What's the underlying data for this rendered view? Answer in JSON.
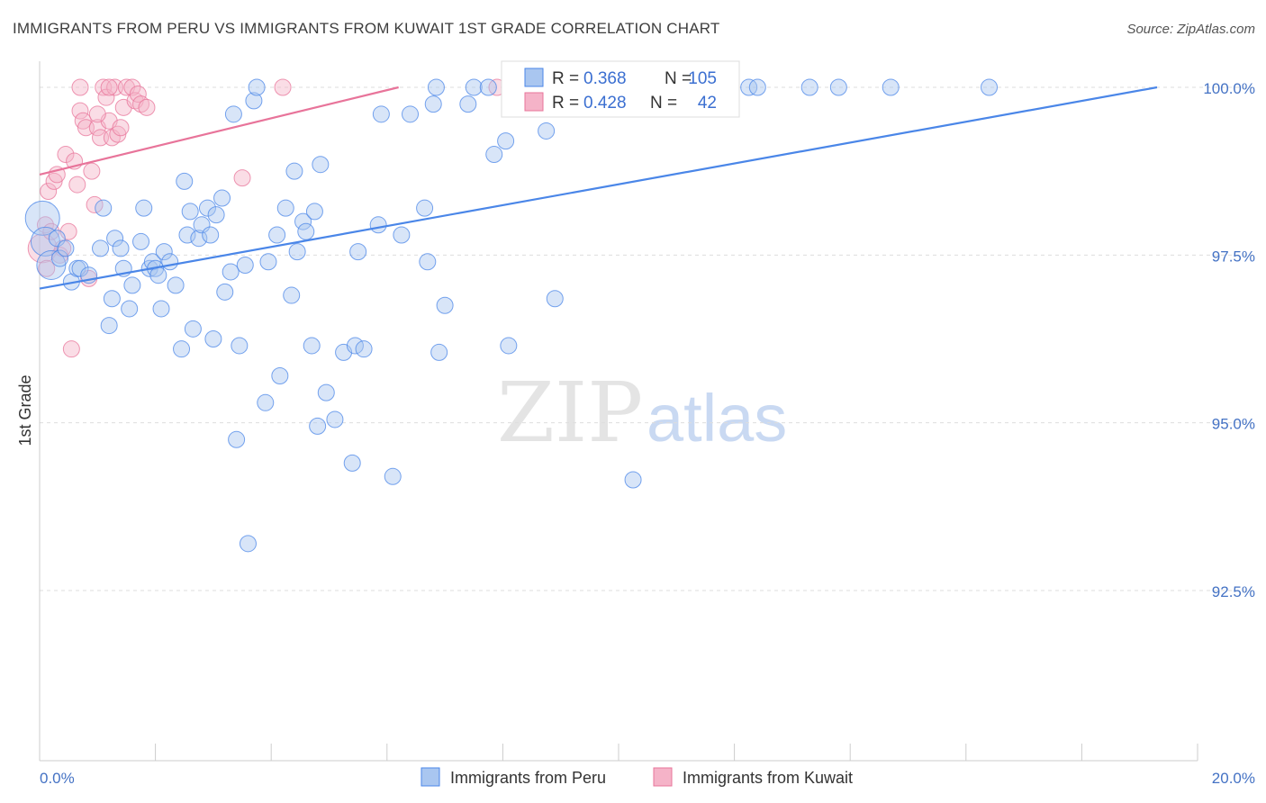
{
  "header": {
    "title": "IMMIGRANTS FROM PERU VS IMMIGRANTS FROM KUWAIT 1ST GRADE CORRELATION CHART",
    "source": "Source: ZipAtlas.com"
  },
  "watermark": {
    "zip": "ZIP",
    "atlas": "atlas"
  },
  "colors": {
    "peru": "#4a86e8",
    "peru_fill": "#a9c6f0",
    "kuwait": "#e8749a",
    "kuwait_fill": "#f5b3c8",
    "tick_text": "#4472c4",
    "grid": "#dddddd"
  },
  "stats": {
    "peru": {
      "r_label": "R = ",
      "r_value": "0.368",
      "n_label": "N = ",
      "n_value": "105"
    },
    "kuwait": {
      "r_label": "R = ",
      "r_value": "0.428",
      "n_label": "N = ",
      "n_value": "42"
    }
  },
  "chart_data": {
    "type": "scatter",
    "title": "IMMIGRANTS FROM PERU VS IMMIGRANTS FROM KUWAIT 1ST GRADE CORRELATION CHART",
    "xlabel": "",
    "ylabel": "1st Grade",
    "xlim": [
      0,
      20
    ],
    "ylim": [
      90.0,
      100.3
    ],
    "x_tick_labels": [
      "0.0%",
      "20.0%"
    ],
    "y_ticks": [
      100.0,
      97.5,
      95.0,
      92.5
    ],
    "y_tick_labels": [
      "100.0%",
      "97.5%",
      "95.0%",
      "92.5%"
    ],
    "legend": [
      "Immigrants from Peru",
      "Immigrants from Kuwait"
    ],
    "series": [
      {
        "name": "Immigrants from Peru",
        "color": "#4a86e8",
        "trend": {
          "x": [
            0,
            19.3
          ],
          "y": [
            97.0,
            100.0
          ]
        },
        "points": [
          {
            "x": 0.05,
            "y": 98.05,
            "s": 3
          },
          {
            "x": 0.1,
            "y": 97.7,
            "s": 2
          },
          {
            "x": 0.2,
            "y": 97.35,
            "s": 2
          },
          {
            "x": 0.35,
            "y": 97.45
          },
          {
            "x": 0.3,
            "y": 97.75
          },
          {
            "x": 0.45,
            "y": 97.6
          },
          {
            "x": 0.55,
            "y": 97.1
          },
          {
            "x": 0.65,
            "y": 97.3
          },
          {
            "x": 0.7,
            "y": 97.3
          },
          {
            "x": 0.85,
            "y": 97.2
          },
          {
            "x": 1.05,
            "y": 97.6
          },
          {
            "x": 1.1,
            "y": 98.2
          },
          {
            "x": 1.3,
            "y": 97.75
          },
          {
            "x": 1.4,
            "y": 97.6
          },
          {
            "x": 1.45,
            "y": 97.3
          },
          {
            "x": 1.25,
            "y": 96.85
          },
          {
            "x": 1.2,
            "y": 96.45
          },
          {
            "x": 1.6,
            "y": 97.05
          },
          {
            "x": 1.55,
            "y": 96.7
          },
          {
            "x": 1.75,
            "y": 97.7
          },
          {
            "x": 1.8,
            "y": 98.2
          },
          {
            "x": 1.9,
            "y": 97.3
          },
          {
            "x": 1.95,
            "y": 97.4
          },
          {
            "x": 2.0,
            "y": 97.3
          },
          {
            "x": 2.05,
            "y": 97.2
          },
          {
            "x": 2.1,
            "y": 96.7
          },
          {
            "x": 2.15,
            "y": 97.55
          },
          {
            "x": 2.25,
            "y": 97.4
          },
          {
            "x": 2.35,
            "y": 97.05
          },
          {
            "x": 2.45,
            "y": 96.1
          },
          {
            "x": 2.5,
            "y": 98.6
          },
          {
            "x": 2.55,
            "y": 97.8
          },
          {
            "x": 2.6,
            "y": 98.15
          },
          {
            "x": 2.65,
            "y": 96.4
          },
          {
            "x": 2.75,
            "y": 97.75
          },
          {
            "x": 2.8,
            "y": 97.95
          },
          {
            "x": 2.9,
            "y": 98.2
          },
          {
            "x": 2.95,
            "y": 97.8
          },
          {
            "x": 3.0,
            "y": 96.25
          },
          {
            "x": 3.05,
            "y": 98.1
          },
          {
            "x": 3.15,
            "y": 98.35
          },
          {
            "x": 3.2,
            "y": 96.95
          },
          {
            "x": 3.3,
            "y": 97.25
          },
          {
            "x": 3.35,
            "y": 99.6
          },
          {
            "x": 3.4,
            "y": 94.75
          },
          {
            "x": 3.45,
            "y": 96.15
          },
          {
            "x": 3.55,
            "y": 97.35
          },
          {
            "x": 3.6,
            "y": 93.2
          },
          {
            "x": 3.7,
            "y": 99.8
          },
          {
            "x": 3.75,
            "y": 100.0
          },
          {
            "x": 3.9,
            "y": 95.3
          },
          {
            "x": 3.95,
            "y": 97.4
          },
          {
            "x": 4.1,
            "y": 97.8
          },
          {
            "x": 4.15,
            "y": 95.7
          },
          {
            "x": 4.25,
            "y": 98.2
          },
          {
            "x": 4.35,
            "y": 96.9
          },
          {
            "x": 4.4,
            "y": 98.75
          },
          {
            "x": 4.45,
            "y": 97.55
          },
          {
            "x": 4.55,
            "y": 98.0
          },
          {
            "x": 4.6,
            "y": 97.85
          },
          {
            "x": 4.7,
            "y": 96.15
          },
          {
            "x": 4.75,
            "y": 98.15
          },
          {
            "x": 4.8,
            "y": 94.95
          },
          {
            "x": 4.85,
            "y": 98.85
          },
          {
            "x": 4.95,
            "y": 95.45
          },
          {
            "x": 5.1,
            "y": 95.05
          },
          {
            "x": 5.25,
            "y": 96.05
          },
          {
            "x": 5.4,
            "y": 94.4
          },
          {
            "x": 5.45,
            "y": 96.15
          },
          {
            "x": 5.5,
            "y": 97.55
          },
          {
            "x": 5.6,
            "y": 96.1
          },
          {
            "x": 5.85,
            "y": 97.95
          },
          {
            "x": 5.9,
            "y": 99.6
          },
          {
            "x": 6.1,
            "y": 94.2
          },
          {
            "x": 6.25,
            "y": 97.8
          },
          {
            "x": 6.4,
            "y": 99.6
          },
          {
            "x": 6.65,
            "y": 98.2
          },
          {
            "x": 6.7,
            "y": 97.4
          },
          {
            "x": 6.8,
            "y": 99.75
          },
          {
            "x": 6.85,
            "y": 100.0
          },
          {
            "x": 6.9,
            "y": 96.05
          },
          {
            "x": 7.0,
            "y": 96.75
          },
          {
            "x": 7.4,
            "y": 99.75
          },
          {
            "x": 7.5,
            "y": 100.0
          },
          {
            "x": 7.75,
            "y": 100.0
          },
          {
            "x": 7.85,
            "y": 99.0
          },
          {
            "x": 8.05,
            "y": 99.2
          },
          {
            "x": 8.1,
            "y": 96.15
          },
          {
            "x": 8.45,
            "y": 100.0
          },
          {
            "x": 8.75,
            "y": 99.35
          },
          {
            "x": 8.9,
            "y": 96.85
          },
          {
            "x": 9.05,
            "y": 100.0
          },
          {
            "x": 9.5,
            "y": 100.0
          },
          {
            "x": 10.25,
            "y": 94.15
          },
          {
            "x": 11.3,
            "y": 100.0
          },
          {
            "x": 11.5,
            "y": 100.0
          },
          {
            "x": 12.25,
            "y": 100.0
          },
          {
            "x": 12.4,
            "y": 100.0
          },
          {
            "x": 13.3,
            "y": 100.0
          },
          {
            "x": 13.8,
            "y": 100.0
          },
          {
            "x": 14.7,
            "y": 100.0
          },
          {
            "x": 16.4,
            "y": 100.0
          }
        ]
      },
      {
        "name": "Immigrants from Kuwait",
        "color": "#e8749a",
        "trend": {
          "x": [
            0,
            6.2
          ],
          "y": [
            98.7,
            100.0
          ]
        },
        "points": [
          {
            "x": 0.05,
            "y": 97.6,
            "s": 2
          },
          {
            "x": 0.1,
            "y": 97.95
          },
          {
            "x": 0.12,
            "y": 97.3
          },
          {
            "x": 0.15,
            "y": 98.45
          },
          {
            "x": 0.2,
            "y": 97.85
          },
          {
            "x": 0.25,
            "y": 98.6
          },
          {
            "x": 0.3,
            "y": 98.7
          },
          {
            "x": 0.35,
            "y": 97.5
          },
          {
            "x": 0.4,
            "y": 97.6
          },
          {
            "x": 0.45,
            "y": 99.0
          },
          {
            "x": 0.5,
            "y": 97.85
          },
          {
            "x": 0.55,
            "y": 96.1
          },
          {
            "x": 0.6,
            "y": 98.9
          },
          {
            "x": 0.65,
            "y": 98.55
          },
          {
            "x": 0.7,
            "y": 99.65
          },
          {
            "x": 0.75,
            "y": 99.5
          },
          {
            "x": 0.8,
            "y": 99.4
          },
          {
            "x": 0.85,
            "y": 97.15
          },
          {
            "x": 0.9,
            "y": 98.75
          },
          {
            "x": 0.95,
            "y": 98.25
          },
          {
            "x": 1.0,
            "y": 99.4
          },
          {
            "x": 1.05,
            "y": 99.25
          },
          {
            "x": 1.1,
            "y": 100.0
          },
          {
            "x": 1.15,
            "y": 99.85
          },
          {
            "x": 1.2,
            "y": 99.5
          },
          {
            "x": 1.25,
            "y": 99.25
          },
          {
            "x": 1.3,
            "y": 100.0
          },
          {
            "x": 1.35,
            "y": 99.3
          },
          {
            "x": 1.4,
            "y": 99.4
          },
          {
            "x": 1.45,
            "y": 99.7
          },
          {
            "x": 1.5,
            "y": 100.0
          },
          {
            "x": 1.6,
            "y": 100.0
          },
          {
            "x": 1.65,
            "y": 99.8
          },
          {
            "x": 1.7,
            "y": 99.9
          },
          {
            "x": 1.75,
            "y": 99.75
          },
          {
            "x": 1.85,
            "y": 99.7
          },
          {
            "x": 0.7,
            "y": 100.0
          },
          {
            "x": 1.2,
            "y": 100.0
          },
          {
            "x": 3.5,
            "y": 98.65
          },
          {
            "x": 4.2,
            "y": 100.0
          },
          {
            "x": 7.9,
            "y": 100.0
          },
          {
            "x": 1.0,
            "y": 99.6
          }
        ]
      }
    ]
  }
}
